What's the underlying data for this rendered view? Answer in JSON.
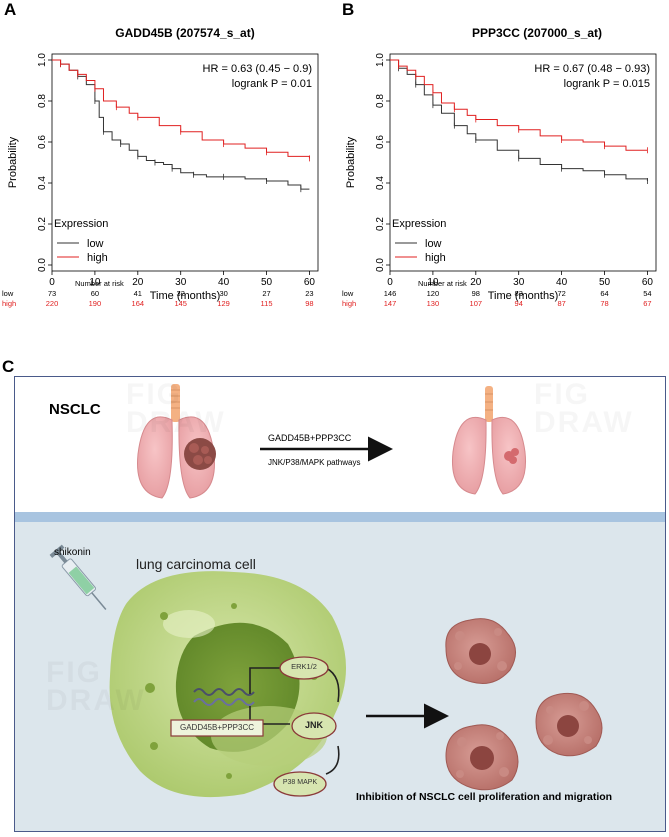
{
  "panels": {
    "A": {
      "letter": "A",
      "title": "GADD45B (207574_s_at)",
      "hr_text": "HR = 0.63 (0.45 − 0.9)",
      "p_text": "logrank P = 0.01",
      "risk_header": "Number at risk",
      "low_label": "low",
      "high_label": "high",
      "low_at_risk": [
        "73",
        "60",
        "41",
        "32",
        "30",
        "27",
        "23"
      ],
      "high_at_risk": [
        "220",
        "190",
        "164",
        "145",
        "129",
        "115",
        "98"
      ]
    },
    "B": {
      "letter": "B",
      "title": "PPP3CC (207000_s_at)",
      "hr_text": "HR = 0.67 (0.48 − 0.93)",
      "p_text": "logrank P = 0.015",
      "risk_header": "Number at risk",
      "low_label": "low",
      "high_label": "high",
      "low_at_risk": [
        "146",
        "120",
        "98",
        "83",
        "72",
        "64",
        "54"
      ],
      "high_at_risk": [
        "147",
        "130",
        "107",
        "94",
        "87",
        "78",
        "67"
      ]
    }
  },
  "axes": {
    "xlabel": "Time (months)",
    "ylabel": "Probability",
    "xticks": [
      "0",
      "10",
      "20",
      "30",
      "40",
      "50",
      "60"
    ],
    "yticks": [
      "0.0",
      "0.2",
      "0.4",
      "0.6",
      "0.8",
      "1.0"
    ],
    "legend_title": "Expression",
    "legend_low": "low",
    "legend_high": "high",
    "low_color": "#333333",
    "high_color": "#e02020"
  },
  "chart_data": [
    {
      "type": "line",
      "title": "GADD45B (207574_s_at)",
      "xlabel": "Time (months)",
      "ylabel": "Probability",
      "xlim": [
        0,
        62
      ],
      "ylim": [
        0,
        1
      ],
      "grid": false,
      "legend": "bottom-left",
      "series": [
        {
          "name": "low",
          "color": "#333333",
          "x": [
            0,
            2,
            4,
            6,
            8,
            10,
            11,
            12,
            14,
            16,
            18,
            20,
            22,
            24,
            26,
            28,
            30,
            33,
            36,
            40,
            45,
            50,
            55,
            58,
            60
          ],
          "y": [
            1.0,
            0.98,
            0.95,
            0.92,
            0.88,
            0.8,
            0.72,
            0.65,
            0.61,
            0.59,
            0.56,
            0.53,
            0.51,
            0.5,
            0.49,
            0.47,
            0.45,
            0.44,
            0.43,
            0.43,
            0.42,
            0.41,
            0.39,
            0.37,
            0.37
          ]
        },
        {
          "name": "high",
          "color": "#e02020",
          "x": [
            0,
            2,
            4,
            6,
            8,
            10,
            12,
            15,
            18,
            20,
            25,
            30,
            35,
            40,
            45,
            50,
            55,
            60
          ],
          "y": [
            1.0,
            0.98,
            0.95,
            0.93,
            0.9,
            0.86,
            0.8,
            0.77,
            0.74,
            0.72,
            0.68,
            0.65,
            0.61,
            0.59,
            0.57,
            0.55,
            0.53,
            0.52
          ]
        }
      ]
    },
    {
      "type": "line",
      "title": "PPP3CC (207000_s_at)",
      "xlabel": "Time (months)",
      "ylabel": "Probability",
      "xlim": [
        0,
        62
      ],
      "ylim": [
        0,
        1
      ],
      "grid": false,
      "legend": "bottom-left",
      "series": [
        {
          "name": "low",
          "color": "#333333",
          "x": [
            0,
            2,
            4,
            6,
            8,
            10,
            12,
            15,
            18,
            20,
            25,
            30,
            35,
            40,
            45,
            50,
            55,
            60
          ],
          "y": [
            1.0,
            0.96,
            0.93,
            0.88,
            0.83,
            0.78,
            0.74,
            0.68,
            0.64,
            0.61,
            0.56,
            0.52,
            0.49,
            0.47,
            0.46,
            0.44,
            0.42,
            0.41
          ]
        },
        {
          "name": "high",
          "color": "#e02020",
          "x": [
            0,
            2,
            4,
            6,
            8,
            10,
            12,
            15,
            18,
            20,
            25,
            30,
            35,
            40,
            45,
            50,
            55,
            60
          ],
          "y": [
            1.0,
            0.97,
            0.95,
            0.92,
            0.88,
            0.84,
            0.79,
            0.76,
            0.73,
            0.71,
            0.68,
            0.66,
            0.63,
            0.61,
            0.6,
            0.58,
            0.56,
            0.56
          ]
        }
      ]
    }
  ],
  "panelC": {
    "letter": "C",
    "nsclc": "NSCLC",
    "arrow_top": "GADD45B+PPP3CC",
    "arrow_bottom": "JNK/P38/MAPK pathways",
    "drug": "shikonin",
    "cell_label": "lung carcinoma cell",
    "erk": "ERK1/2",
    "jnk": "JNK",
    "p38": "P38 MAPK",
    "gene_box": "GADD45B+PPP3CC",
    "conclusion": "Inhibition of NSCLC cell proliferation and migration",
    "watermark_a": "FIG",
    "watermark_b": "DRAW",
    "top_bg": "#ffffff",
    "divider": "#a8c4e0",
    "bottom_bg": "#dce6ec",
    "border": "#4a5a8a"
  }
}
